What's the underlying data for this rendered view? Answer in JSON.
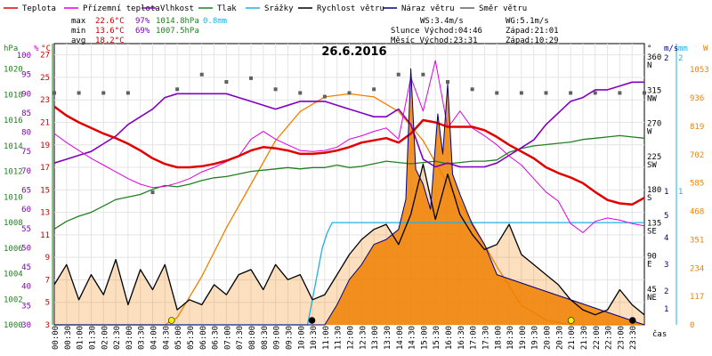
{
  "chart_data": {
    "type": "line",
    "title": "26.6.2016",
    "legend": [
      {
        "label": "Teplota",
        "color": "#e00000"
      },
      {
        "label": "Přízemní teplota",
        "color": "#e000e0"
      },
      {
        "label": "Vlhkost",
        "color": "#8000c0"
      },
      {
        "label": "Tlak",
        "color": "#208020"
      },
      {
        "label": "Srážky",
        "color": "#20b0e0"
      },
      {
        "label": "Rychlost větru",
        "color": "#000000"
      },
      {
        "label": "Náraz větru",
        "color": "#000080"
      },
      {
        "label": "Směr větru",
        "color": "#606060"
      }
    ],
    "stats": {
      "max": {
        "label": "max",
        "temp": "22.6°C",
        "hum": "97%",
        "press": "1014.8hPa",
        "rain": "0.8mm"
      },
      "min": {
        "label": "min",
        "temp": "13.6°C",
        "hum": "69%",
        "press": "1007.5hPa"
      },
      "avg": {
        "label": "avg",
        "temp": "18.2°C"
      }
    },
    "info": {
      "ws": "WS:3.4m/s",
      "wg": "WG:5.1m/s",
      "sun_rise": "Slunce Východ:04:46",
      "sun_set": "Západ:21:01",
      "moon_rise": "Měsíc  Východ:23:31",
      "moon_set": "Západ:10:29"
    },
    "axes": {
      "hpa": {
        "unit": "hPa",
        "ticks": [
          "1020",
          "1018",
          "1016",
          "1014",
          "1012",
          "1010",
          "1008",
          "1006",
          "1004",
          "1002",
          "1000"
        ],
        "range": [
          1000,
          1022
        ]
      },
      "pct": {
        "unit": "%",
        "ticks": [
          "100",
          "95",
          "90",
          "85",
          "80",
          "75",
          "70",
          "65",
          "60",
          "55",
          "50",
          "45",
          "40",
          "35",
          "30"
        ]
      },
      "temp": {
        "unit": "°C",
        "ticks": [
          "27",
          "25",
          "23",
          "21",
          "19",
          "17",
          "15",
          "13",
          "11",
          "9",
          "7",
          "5",
          "3"
        ],
        "range": [
          3,
          28
        ]
      },
      "dir": {
        "unit": "°",
        "ticks": [
          "360",
          "315",
          "270",
          "225",
          "180",
          "135",
          "90",
          "45"
        ],
        "names": [
          "N",
          "NW",
          "W",
          "SW",
          "S",
          "SE",
          "E",
          "NE"
        ]
      },
      "ms": {
        "unit": "m/s",
        "ticks": [
          "2",
          "1",
          "5",
          "4",
          "3",
          "2",
          "1"
        ]
      },
      "mm": {
        "unit": "mm",
        "ticks": [
          "2",
          "1"
        ]
      },
      "w": {
        "unit": "W",
        "ticks": [
          "1053",
          "936",
          "819",
          "702",
          "585",
          "468",
          "351",
          "234",
          "117",
          "0"
        ]
      },
      "x_label": "čas",
      "x_ticks": [
        "00:00",
        "00:30",
        "01:00",
        "01:30",
        "02:00",
        "02:30",
        "03:00",
        "03:30",
        "04:00",
        "04:30",
        "05:00",
        "05:30",
        "06:00",
        "06:30",
        "07:00",
        "07:30",
        "08:00",
        "08:30",
        "09:00",
        "09:30",
        "10:00",
        "10:30",
        "11:00",
        "11:30",
        "12:00",
        "12:30",
        "13:00",
        "13:30",
        "14:00",
        "14:30",
        "15:00",
        "15:30",
        "16:00",
        "16:30",
        "17:00",
        "17:30",
        "18:00",
        "18:30",
        "19:00",
        "19:30",
        "20:00",
        "20:30",
        "21:00",
        "21:30",
        "22:00",
        "22:30",
        "23:00",
        "23:30"
      ]
    },
    "series": [
      {
        "name": "Teplota",
        "unit": "°C",
        "color": "#e00000",
        "x": [
          0,
          0.5,
          1,
          1.5,
          2,
          2.5,
          3,
          3.5,
          4,
          4.5,
          5,
          5.5,
          6,
          6.5,
          7,
          7.5,
          8,
          8.5,
          9,
          9.5,
          10,
          10.5,
          11,
          11.5,
          12,
          12.5,
          13,
          13.5,
          14,
          14.5,
          15,
          15.5,
          16,
          16.5,
          17,
          17.5,
          18,
          18.5,
          19,
          19.5,
          20,
          20.5,
          21,
          21.5,
          22,
          22.5,
          23,
          23.5,
          24
        ],
        "y": [
          22.4,
          21.6,
          21.0,
          20.5,
          20.0,
          19.6,
          19.1,
          18.5,
          17.8,
          17.3,
          17.0,
          17.0,
          17.1,
          17.3,
          17.6,
          18.0,
          18.5,
          18.8,
          18.7,
          18.5,
          18.2,
          18.2,
          18.3,
          18.5,
          18.8,
          19.2,
          19.4,
          19.6,
          19.2,
          20.0,
          21.2,
          21.0,
          20.6,
          20.6,
          20.6,
          20.3,
          19.7,
          19.0,
          18.4,
          17.8,
          17.0,
          16.5,
          16.1,
          15.6,
          14.8,
          14.1,
          13.8,
          13.7,
          14.3
        ]
      },
      {
        "name": "Přízemní teplota",
        "unit": "°C",
        "color": "#e000e0",
        "x": [
          0,
          0.5,
          1,
          1.5,
          2,
          2.5,
          3,
          3.5,
          4,
          4.5,
          5,
          5.5,
          6,
          6.5,
          7,
          7.5,
          8,
          8.5,
          9,
          9.5,
          10,
          10.5,
          11,
          11.5,
          12,
          12.5,
          13,
          13.5,
          14,
          14.5,
          15,
          15.5,
          16,
          16.5,
          17,
          17.5,
          18,
          18.5,
          19,
          19.5,
          20,
          20.5,
          21,
          21.5,
          22,
          22.5,
          23,
          23.5,
          24
        ],
        "y": [
          20.0,
          19.2,
          18.5,
          17.8,
          17.2,
          16.6,
          16.0,
          15.5,
          15.2,
          15.3,
          15.6,
          16.0,
          16.6,
          17.0,
          17.5,
          18.0,
          19.5,
          20.2,
          19.5,
          19.0,
          18.5,
          18.4,
          18.5,
          18.8,
          19.5,
          19.8,
          20.2,
          20.5,
          19.5,
          25.0,
          22.0,
          26.5,
          20.5,
          22.0,
          20.5,
          19.8,
          19.0,
          18.0,
          17.2,
          16.0,
          14.8,
          14.0,
          12.0,
          11.2,
          12.2,
          12.5,
          12.3,
          12.0,
          11.8
        ]
      },
      {
        "name": "Vlhkost",
        "unit": "%",
        "color": "#8000c0",
        "x": [
          0,
          0.5,
          1,
          1.5,
          2,
          2.5,
          3,
          3.5,
          4,
          4.5,
          5,
          5.5,
          6,
          6.5,
          7,
          7.5,
          8,
          8.5,
          9,
          9.5,
          10,
          10.5,
          11,
          11.5,
          12,
          12.5,
          13,
          13.5,
          14,
          14.5,
          15,
          15.5,
          16,
          16.5,
          17,
          17.5,
          18,
          18.5,
          19,
          19.5,
          20,
          20.5,
          21,
          21.5,
          22,
          22.5,
          23,
          23.5,
          24
        ],
        "y": [
          72,
          73,
          74,
          75,
          77,
          79,
          82,
          84,
          86,
          89,
          90,
          90,
          90,
          90,
          90,
          89,
          88,
          87,
          86,
          87,
          88,
          88,
          88,
          87,
          86,
          85,
          84,
          84,
          86,
          82,
          73,
          71,
          72,
          71,
          71,
          71,
          72,
          74,
          76,
          78,
          82,
          85,
          88,
          89,
          91,
          91,
          92,
          93,
          93
        ]
      },
      {
        "name": "Tlak",
        "unit": "hPa",
        "color": "#208020",
        "x": [
          0,
          0.5,
          1,
          1.5,
          2,
          2.5,
          3,
          3.5,
          4,
          4.5,
          5,
          5.5,
          6,
          6.5,
          7,
          7.5,
          8,
          8.5,
          9,
          9.5,
          10,
          10.5,
          11,
          11.5,
          12,
          12.5,
          13,
          13.5,
          14,
          14.5,
          15,
          15.5,
          16,
          16.5,
          17,
          17.5,
          18,
          18.5,
          19,
          19.5,
          20,
          20.5,
          21,
          21.5,
          22,
          22.5,
          23,
          23.5,
          24
        ],
        "y": [
          1007.5,
          1008.1,
          1008.5,
          1008.8,
          1009.3,
          1009.8,
          1010.0,
          1010.2,
          1010.6,
          1010.9,
          1010.8,
          1011.0,
          1011.3,
          1011.5,
          1011.6,
          1011.8,
          1012.0,
          1012.1,
          1012.2,
          1012.3,
          1012.2,
          1012.3,
          1012.3,
          1012.5,
          1012.3,
          1012.4,
          1012.6,
          1012.8,
          1012.7,
          1012.6,
          1012.7,
          1012.8,
          1012.6,
          1012.7,
          1012.8,
          1012.8,
          1012.9,
          1013.5,
          1013.8,
          1014.0,
          1014.1,
          1014.2,
          1014.3,
          1014.5,
          1014.6,
          1014.7,
          1014.8,
          1014.7,
          1014.6
        ]
      },
      {
        "name": "Srážky",
        "unit": "mm",
        "color": "#20b0e0",
        "x": [
          0,
          10.3,
          10.5,
          10.7,
          10.9,
          11.1,
          11.3,
          24
        ],
        "y": [
          0,
          0,
          0.2,
          0.4,
          0.6,
          0.72,
          0.8,
          0.8
        ]
      },
      {
        "name": "Rychlost větru",
        "unit": "m/s",
        "color": "#000000",
        "x": [
          0,
          0.5,
          1,
          1.5,
          2,
          2.5,
          3,
          3.5,
          4,
          4.5,
          5,
          5.5,
          6,
          6.5,
          7,
          7.5,
          8,
          8.5,
          9,
          9.5,
          10,
          10.5,
          11,
          11.5,
          12,
          12.5,
          13,
          13.5,
          14,
          14.5,
          15,
          15.5,
          16,
          16.5,
          17,
          17.5,
          18,
          18.5,
          19,
          19.5,
          20,
          20.5,
          21,
          21.5,
          22,
          22.5,
          23,
          23.5,
          24
        ],
        "y": [
          0.8,
          1.2,
          0.5,
          1.0,
          0.6,
          1.3,
          0.4,
          1.1,
          0.7,
          1.2,
          0.3,
          0.5,
          0.4,
          0.8,
          0.6,
          1.0,
          1.1,
          0.7,
          1.2,
          0.9,
          1.0,
          0.5,
          0.6,
          1.0,
          1.4,
          1.7,
          1.9,
          2.0,
          1.6,
          2.2,
          3.2,
          2.1,
          3.0,
          2.2,
          1.8,
          1.5,
          1.6,
          2.0,
          1.4,
          1.2,
          1.0,
          0.8,
          0.5,
          0.3,
          0.2,
          0.3,
          0.7,
          0.4,
          0.2
        ]
      },
      {
        "name": "Náraz větru",
        "unit": "m/s",
        "color": "#000080",
        "x": [
          0,
          11,
          11.5,
          12,
          12.5,
          13,
          13.5,
          14,
          14.3,
          14.5,
          14.7,
          15,
          15.3,
          15.6,
          15.8,
          16,
          16.2,
          16.5,
          17,
          17.5,
          18,
          24
        ],
        "y": [
          0,
          0,
          0.4,
          0.9,
          1.2,
          1.6,
          1.7,
          1.9,
          2.5,
          5.1,
          3.1,
          2.8,
          2.3,
          4.2,
          3.4,
          4.8,
          3.0,
          2.6,
          2.0,
          1.6,
          1.0,
          0
        ]
      },
      {
        "name": "Směr větru",
        "unit": "°",
        "color": "#606060",
        "x": [
          0,
          1,
          2,
          3,
          4,
          5,
          6,
          7,
          8,
          9,
          10,
          11,
          12,
          13,
          14,
          15,
          16,
          17,
          18,
          19,
          20,
          21,
          22,
          23,
          24
        ],
        "y": [
          315,
          315,
          315,
          315,
          180,
          320,
          340,
          330,
          335,
          320,
          315,
          310,
          315,
          320,
          340,
          340,
          330,
          320,
          315,
          315,
          315,
          315,
          315,
          315,
          315
        ]
      },
      {
        "name": "Sluneční záření",
        "unit": "W",
        "color": "#f08000",
        "x": [
          0,
          4.5,
          5,
          6,
          7,
          8,
          9,
          10,
          11,
          12,
          13,
          14,
          15,
          16,
          17,
          18,
          19,
          20,
          21,
          24
        ],
        "y": [
          0,
          0,
          30,
          200,
          400,
          580,
          760,
          880,
          940,
          953,
          940,
          880,
          760,
          580,
          420,
          240,
          80,
          20,
          0,
          0
        ]
      }
    ]
  }
}
